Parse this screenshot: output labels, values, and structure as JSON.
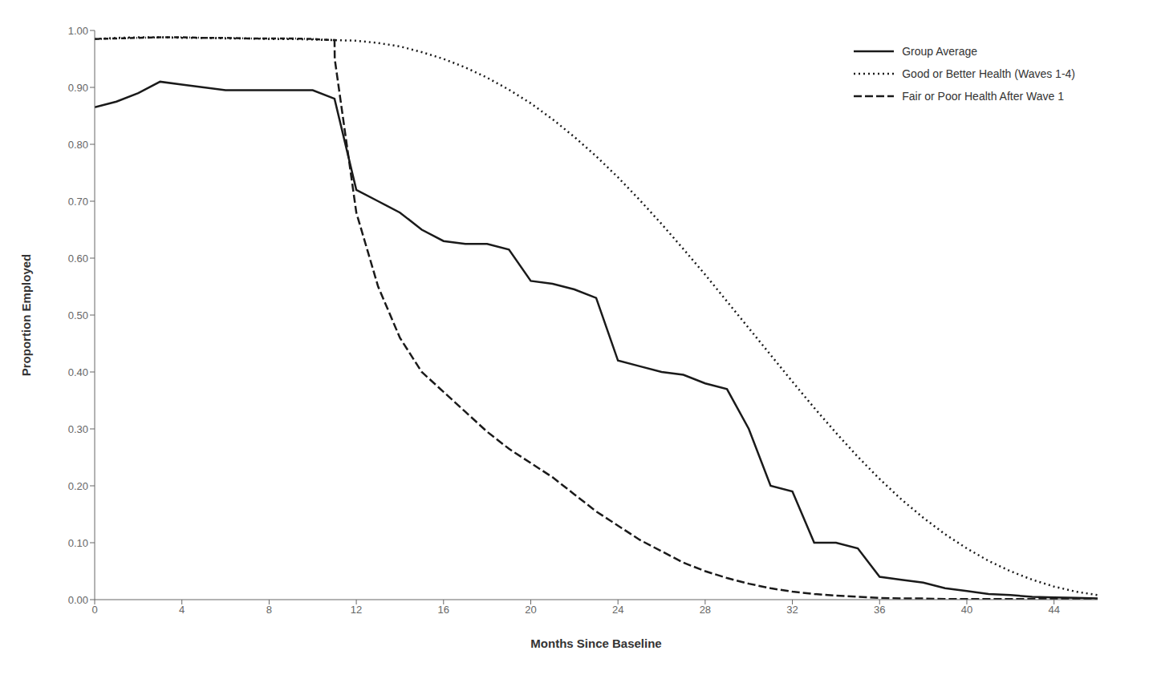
{
  "chart_data": {
    "type": "line",
    "xlabel": "Months Since Baseline",
    "ylabel": "Proportion Employed",
    "xlim": [
      0,
      46
    ],
    "ylim": [
      0.0,
      1.0
    ],
    "xticks": [
      0,
      4,
      8,
      12,
      16,
      20,
      24,
      28,
      32,
      36,
      40,
      44
    ],
    "yticks": [
      {
        "value": 0.0,
        "label": "0.00"
      },
      {
        "value": 0.1,
        "label": "0.10"
      },
      {
        "value": 0.2,
        "label": "0.20"
      },
      {
        "value": 0.3,
        "label": "0.30"
      },
      {
        "value": 0.4,
        "label": "0.40"
      },
      {
        "value": 0.5,
        "label": "0.50"
      },
      {
        "value": 0.6,
        "label": "0.60"
      },
      {
        "value": 0.7,
        "label": "0.70"
      },
      {
        "value": 0.8,
        "label": "0.80"
      },
      {
        "value": 0.9,
        "label": "0.90"
      },
      {
        "value": 1.0,
        "label": "1.00"
      }
    ],
    "grid": false,
    "legend": "upper right",
    "series": [
      {
        "name": "Group Average",
        "color": "#1a1a1a",
        "line_style": "solid",
        "x": [
          0,
          1,
          2,
          3,
          4,
          5,
          6,
          7,
          8,
          9,
          10,
          11,
          12,
          13,
          14,
          15,
          16,
          17,
          18,
          19,
          20,
          21,
          22,
          23,
          24,
          25,
          26,
          27,
          28,
          29,
          30,
          31,
          32,
          33,
          34,
          35,
          36,
          37,
          38,
          39,
          40,
          41,
          42,
          43,
          44,
          45,
          46
        ],
        "values": [
          0.865,
          0.875,
          0.89,
          0.91,
          0.905,
          0.9,
          0.895,
          0.895,
          0.895,
          0.895,
          0.895,
          0.88,
          0.72,
          0.7,
          0.68,
          0.65,
          0.63,
          0.625,
          0.625,
          0.615,
          0.56,
          0.555,
          0.545,
          0.53,
          0.42,
          0.41,
          0.4,
          0.395,
          0.38,
          0.37,
          0.3,
          0.2,
          0.19,
          0.1,
          0.1,
          0.09,
          0.04,
          0.035,
          0.03,
          0.02,
          0.015,
          0.01,
          0.008,
          0.005,
          0.004,
          0.003,
          0.002
        ]
      },
      {
        "color": "#1a1a1a",
        "line_style": "dashdot",
        "x": [
          0,
          1,
          2,
          3,
          4,
          5,
          6,
          7,
          8,
          9,
          10,
          11
        ],
        "values": [
          0.985,
          0.986,
          0.987,
          0.988,
          0.988,
          0.987,
          0.987,
          0.986,
          0.986,
          0.986,
          0.985,
          0.983
        ]
      },
      {
        "name": "Good or Better Health (Waves 1-4)",
        "color": "#1a1a1a",
        "line_style": "dotted",
        "x": [
          0,
          1,
          2,
          3,
          4,
          5,
          6,
          7,
          8,
          9,
          10,
          11,
          12,
          13,
          14,
          15,
          16,
          17,
          18,
          19,
          20,
          21,
          22,
          23,
          24,
          25,
          26,
          27,
          28,
          29,
          30,
          31,
          32,
          33,
          34,
          35,
          36,
          37,
          38,
          39,
          40,
          41,
          42,
          43,
          44,
          45,
          46
        ],
        "values": [
          0.985,
          0.987,
          0.988,
          0.988,
          0.987,
          0.987,
          0.986,
          0.986,
          0.985,
          0.985,
          0.984,
          0.983,
          0.982,
          0.978,
          0.972,
          0.962,
          0.95,
          0.935,
          0.917,
          0.896,
          0.872,
          0.844,
          0.813,
          0.779,
          0.742,
          0.702,
          0.66,
          0.616,
          0.571,
          0.524,
          0.477,
          0.43,
          0.383,
          0.337,
          0.293,
          0.251,
          0.212,
          0.176,
          0.144,
          0.115,
          0.09,
          0.068,
          0.05,
          0.035,
          0.023,
          0.014,
          0.008
        ]
      },
      {
        "name": "Fair or Poor Health After Wave 1",
        "color": "#1a1a1a",
        "line_style": "dashed",
        "x": [
          11,
          11.01,
          12,
          13,
          14,
          15,
          16,
          17,
          18,
          19,
          20,
          21,
          22,
          23,
          24,
          25,
          26,
          27,
          28,
          29,
          30,
          31,
          32,
          33,
          34,
          35,
          36,
          37,
          38,
          39,
          40,
          41,
          42,
          43,
          44,
          45,
          46
        ],
        "values": [
          0.985,
          0.95,
          0.68,
          0.55,
          0.46,
          0.4,
          0.365,
          0.33,
          0.295,
          0.265,
          0.24,
          0.215,
          0.185,
          0.155,
          0.13,
          0.105,
          0.085,
          0.065,
          0.05,
          0.038,
          0.028,
          0.02,
          0.014,
          0.01,
          0.007,
          0.005,
          0.003,
          0.002,
          0.002,
          0.001,
          0.001,
          0.001,
          0.001,
          0.001,
          0.001,
          0.001,
          0.001
        ]
      }
    ]
  }
}
